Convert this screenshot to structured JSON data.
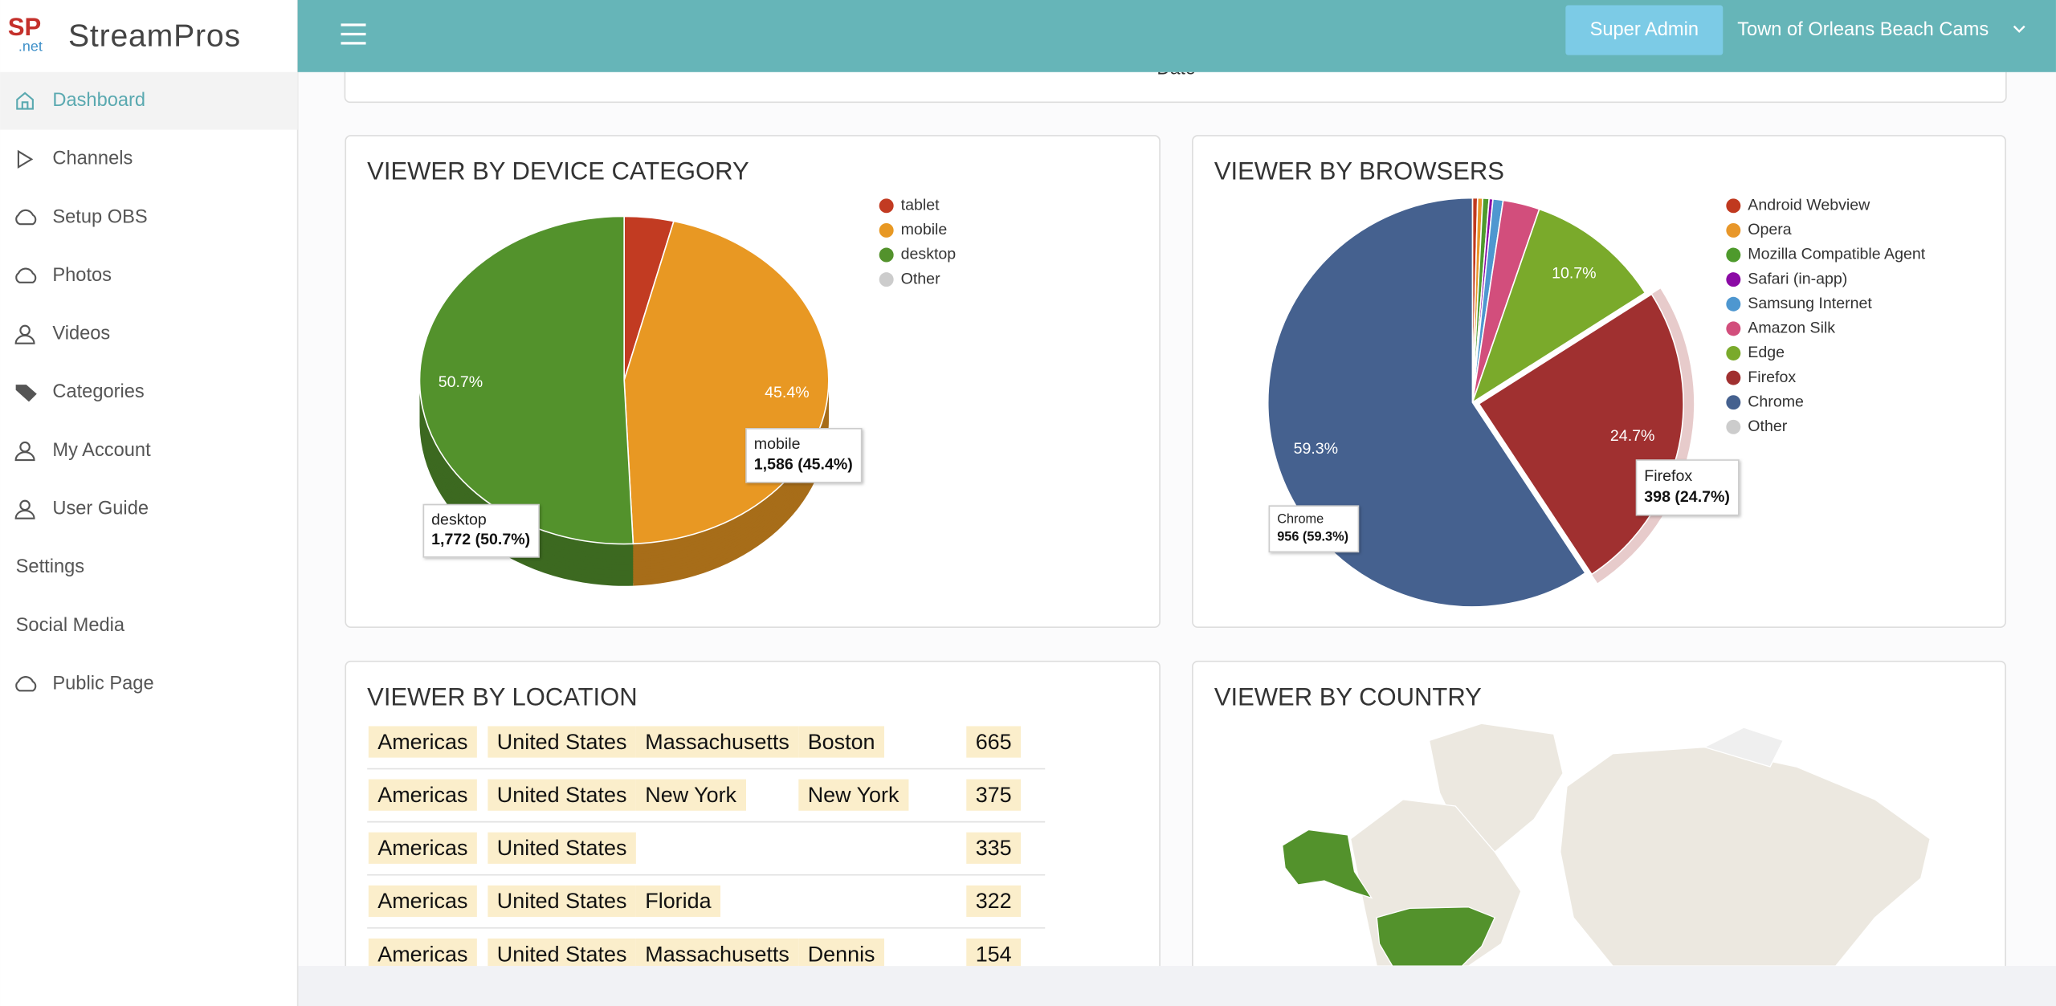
{
  "sidebar": {
    "logo": {
      "top": "SP",
      "bottom": ".net"
    },
    "brand": "StreamPros",
    "menu": [
      "Dashboard",
      "Channels",
      "Setup OBS",
      "Photos",
      "Videos",
      "Categories",
      "My Account",
      "User Guide",
      "Settings",
      "Social Media",
      "Public Page"
    ]
  },
  "header": {
    "role": "Super Admin",
    "account": "Town of Orleans Beach Cams"
  },
  "date_card": {
    "axis_label": "Date"
  },
  "chart_data": [
    {
      "type": "pie",
      "title": "VIEWER BY DEVICE CATEGORY",
      "three_d": true,
      "categories": [
        "tablet",
        "mobile",
        "desktop",
        "Other"
      ],
      "values": [
        3.9,
        45.4,
        50.7,
        0
      ],
      "value_labels": [
        null,
        "45.4%",
        "50.7%",
        null
      ],
      "colors": [
        "#c23b22",
        "#e89823",
        "#53922c",
        "#cccccc"
      ],
      "tooltips": [
        null,
        "1,586 (45.4%)",
        "1,772 (50.7%)",
        null
      ],
      "legend": "right"
    },
    {
      "type": "pie",
      "title": "VIEWER BY BROWSERS",
      "three_d": false,
      "explode": "Firefox",
      "categories": [
        "Android Webview",
        "Opera",
        "Mozilla Compatible Agent",
        "Safari (in-app)",
        "Samsung Internet",
        "Amazon Silk",
        "Edge",
        "Firefox",
        "Chrome",
        "Other"
      ],
      "values": [
        0.4,
        0.4,
        0.5,
        0.3,
        0.8,
        2.9,
        10.7,
        24.7,
        59.3,
        0
      ],
      "value_labels": [
        null,
        null,
        null,
        null,
        null,
        null,
        "10.7%",
        "24.7%",
        "59.3%",
        null
      ],
      "colors": [
        "#c0391f",
        "#e8972a",
        "#4e9a2c",
        "#8b0aa5",
        "#4e97d0",
        "#d24e7c",
        "#7aaa2b",
        "#a03030",
        "#45618f",
        "#cccccc"
      ],
      "tooltips": [
        null,
        null,
        null,
        null,
        null,
        null,
        null,
        "398 (24.7%)",
        "956 (59.3%)",
        null
      ],
      "legend": "right"
    }
  ],
  "location_table": {
    "title": "VIEWER BY LOCATION",
    "rows": [
      [
        "Americas",
        "United States",
        "Massachusetts",
        "Boston",
        665
      ],
      [
        "Americas",
        "United States",
        "New York",
        "New York",
        375
      ],
      [
        "Americas",
        "United States",
        null,
        null,
        335
      ],
      [
        "Americas",
        "United States",
        "Florida",
        null,
        322
      ],
      [
        "Americas",
        "United States",
        "Massachusetts",
        "Dennis",
        154
      ]
    ]
  },
  "country_map": {
    "title": "VIEWER BY COUNTRY"
  }
}
